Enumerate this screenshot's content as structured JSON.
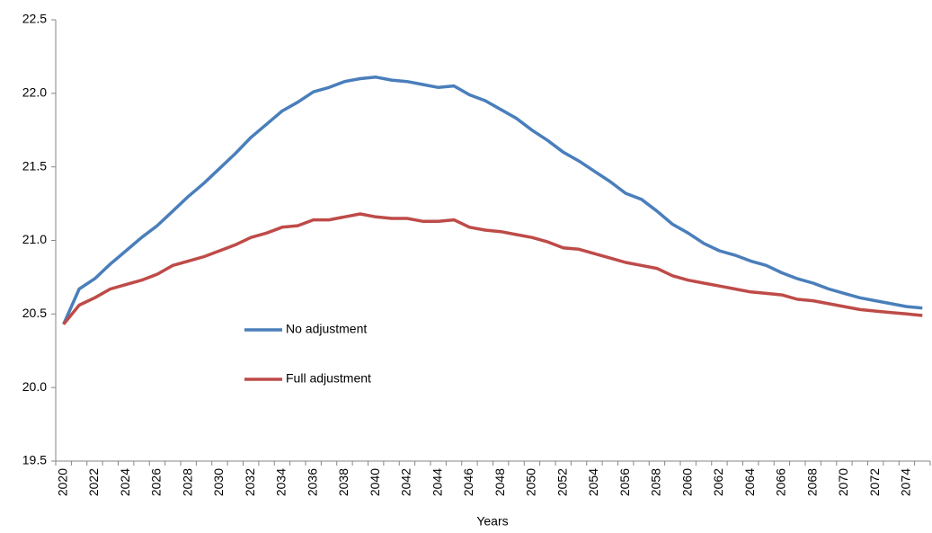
{
  "chart_data": {
    "type": "line",
    "x_label": "Years",
    "categories": [
      "2020",
      null,
      "2022",
      null,
      "2024",
      null,
      "2026",
      null,
      "2028",
      null,
      "2030",
      null,
      "2032",
      null,
      "2034",
      null,
      "2036",
      null,
      "2038",
      null,
      "2040",
      null,
      "2042",
      null,
      "2044",
      null,
      "2046",
      null,
      "2048",
      null,
      "2050",
      null,
      "2052",
      null,
      "2054",
      null,
      "2056",
      null,
      "2058",
      null,
      "2060",
      null,
      "2062",
      null,
      "2064",
      null,
      "2066",
      null,
      "2068",
      null,
      "2070",
      null,
      "2072",
      null,
      "2074",
      null
    ],
    "series": [
      {
        "name": "No adjustment",
        "color": "#4a7ebb",
        "values": [
          20.43,
          20.67,
          20.74,
          20.84,
          20.93,
          21.02,
          21.1,
          21.2,
          21.3,
          21.39,
          21.49,
          21.59,
          21.7,
          21.79,
          21.88,
          21.94,
          22.01,
          22.04,
          22.08,
          22.1,
          22.11,
          22.09,
          22.08,
          22.06,
          22.04,
          22.05,
          21.99,
          21.95,
          21.89,
          21.83,
          21.75,
          21.68,
          21.6,
          21.54,
          21.47,
          21.4,
          21.32,
          21.28,
          21.2,
          21.11,
          21.05,
          20.98,
          20.93,
          20.9,
          20.86,
          20.83,
          20.78,
          20.74,
          20.71,
          20.67,
          20.64,
          20.61,
          20.59,
          20.57,
          20.55,
          20.54
        ]
      },
      {
        "name": "Full adjustment",
        "color": "#be4b48",
        "values": [
          20.43,
          20.56,
          20.61,
          20.67,
          20.7,
          20.73,
          20.77,
          20.83,
          20.86,
          20.89,
          20.93,
          20.97,
          21.02,
          21.05,
          21.09,
          21.1,
          21.14,
          21.14,
          21.16,
          21.18,
          21.16,
          21.15,
          21.15,
          21.13,
          21.13,
          21.14,
          21.09,
          21.07,
          21.06,
          21.04,
          21.02,
          20.99,
          20.95,
          20.94,
          20.91,
          20.88,
          20.85,
          20.83,
          20.81,
          20.76,
          20.73,
          20.71,
          20.69,
          20.67,
          20.65,
          20.64,
          20.63,
          20.6,
          20.59,
          20.57,
          20.55,
          20.53,
          20.52,
          20.51,
          20.5,
          20.49
        ]
      }
    ],
    "ylim": [
      19.5,
      22.5
    ],
    "yticks": [
      19.5,
      {
        "value": 20,
        "label": "20.0"
      },
      20.5,
      {
        "value": 21,
        "label": "21.0"
      },
      21.5,
      {
        "value": 22,
        "label": "22.0"
      },
      22.5
    ],
    "grid": false,
    "legend": "left"
  }
}
